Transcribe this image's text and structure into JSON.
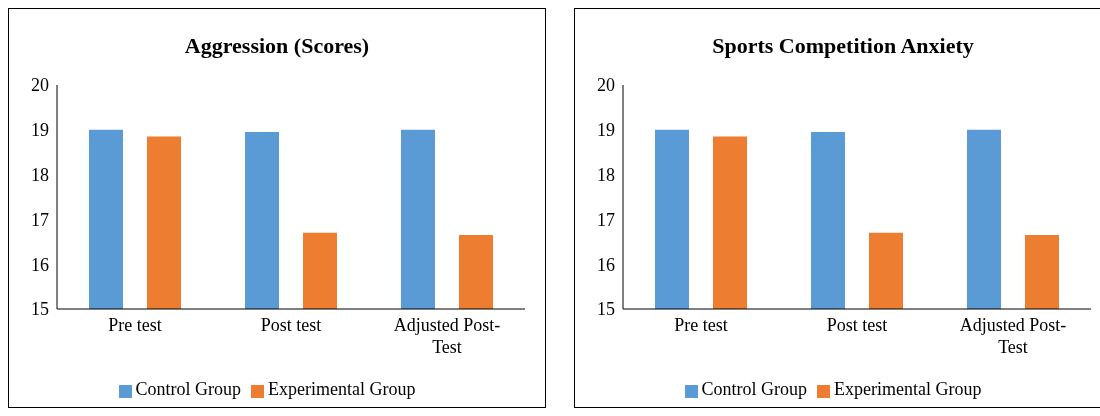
{
  "chart_data": [
    {
      "type": "bar",
      "title": "Aggression (Scores)",
      "categories": [
        "Pre test",
        "Post test",
        "Adjusted Post-Test"
      ],
      "series": [
        {
          "name": "Control Group",
          "color": "#5b9bd5",
          "values": [
            19.0,
            18.95,
            19.0
          ]
        },
        {
          "name": "Experimental Group",
          "color": "#ed7d31",
          "values": [
            18.85,
            16.7,
            16.65
          ]
        }
      ],
      "ylim": [
        15,
        20
      ],
      "yticks": [
        15,
        16,
        17,
        18,
        19,
        20
      ],
      "grid": false,
      "legend": "bottom"
    },
    {
      "type": "bar",
      "title": "Sports Competition Anxiety",
      "categories": [
        "Pre test",
        "Post test",
        "Adjusted Post-Test"
      ],
      "series": [
        {
          "name": "Control Group",
          "color": "#5b9bd5",
          "values": [
            19.0,
            18.95,
            19.0
          ]
        },
        {
          "name": "Experimental Group",
          "color": "#ed7d31",
          "values": [
            18.85,
            16.7,
            16.65
          ]
        }
      ],
      "ylim": [
        15,
        20
      ],
      "yticks": [
        15,
        16,
        17,
        18,
        19,
        20
      ],
      "grid": false,
      "legend": "bottom"
    }
  ]
}
